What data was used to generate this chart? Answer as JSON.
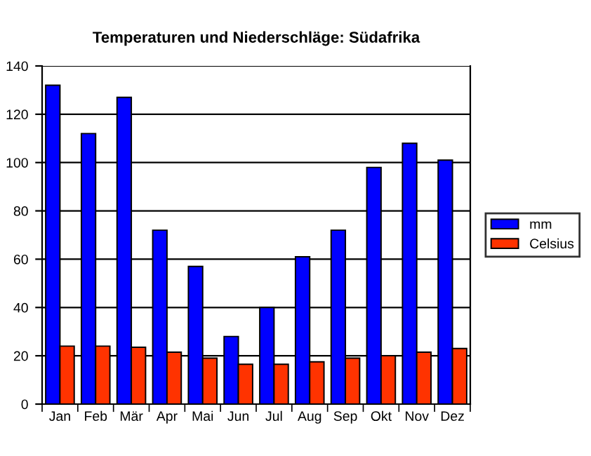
{
  "chart_data": {
    "type": "bar",
    "title": "Temperaturen und Niederschläge: Südafrika",
    "categories": [
      "Jan",
      "Feb",
      "Mär",
      "Apr",
      "Mai",
      "Jun",
      "Jul",
      "Aug",
      "Sep",
      "Okt",
      "Nov",
      "Dez"
    ],
    "series": [
      {
        "name": "mm",
        "color": "#0000ff",
        "values": [
          132,
          112,
          127,
          72,
          57,
          28,
          40,
          61,
          72,
          98,
          108,
          101
        ]
      },
      {
        "name": "Celsius",
        "color": "#ff3300",
        "values": [
          24,
          24,
          23.5,
          21.5,
          19,
          16.5,
          16.5,
          17.5,
          19,
          20,
          21.5,
          23
        ]
      }
    ],
    "ylim": [
      0,
      140
    ],
    "yticks": [
      0,
      20,
      40,
      60,
      80,
      100,
      120,
      140
    ],
    "grid": "y",
    "legend": "right"
  }
}
